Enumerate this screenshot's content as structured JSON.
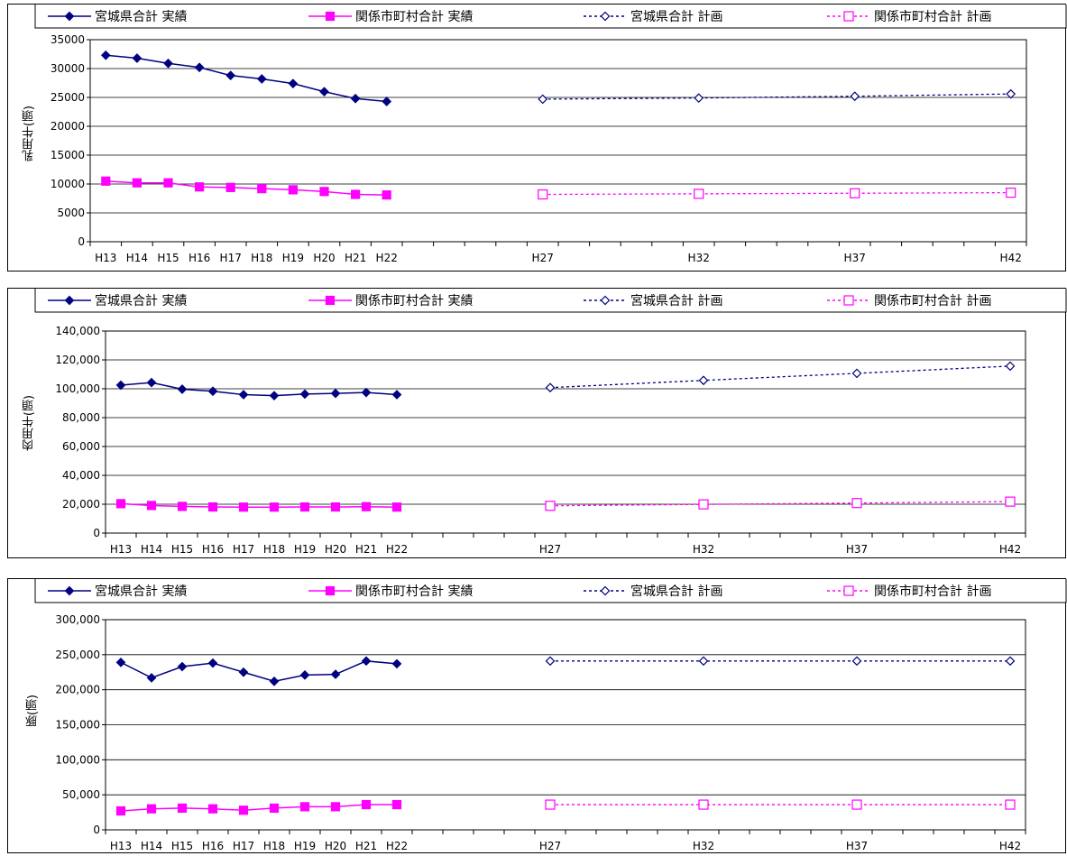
{
  "colors": {
    "actual_pref": "#000080",
    "actual_city": "#ff00ff",
    "plan_pref": "#000080",
    "plan_city": "#ff00ff"
  },
  "legend_labels": [
    "宮城県合計 実績",
    "関係市町村合計 実績",
    "宮城県合計 計画",
    "関係市町村合計 計画"
  ],
  "chart_data": [
    {
      "type": "line",
      "ylabel": "乳用牛(頭)",
      "ylim": [
        0,
        35000
      ],
      "yticks": [
        "0",
        "5000",
        "10000",
        "15000",
        "20000",
        "25000",
        "30000",
        "35000"
      ],
      "categories": [
        "H13",
        "H14",
        "H15",
        "H16",
        "H17",
        "H18",
        "H19",
        "H20",
        "H21",
        "H22",
        "H27",
        "H32",
        "H37",
        "H42"
      ],
      "series": [
        {
          "name": "宮城県合計 実績",
          "x": [
            "H13",
            "H14",
            "H15",
            "H16",
            "H17",
            "H18",
            "H19",
            "H20",
            "H21",
            "H22"
          ],
          "values": [
            32300,
            31800,
            30900,
            30200,
            28800,
            28200,
            27400,
            26000,
            24800,
            24300
          ]
        },
        {
          "name": "関係市町村合計 実績",
          "x": [
            "H13",
            "H14",
            "H15",
            "H16",
            "H17",
            "H18",
            "H19",
            "H20",
            "H21",
            "H22"
          ],
          "values": [
            10500,
            10200,
            10200,
            9500,
            9400,
            9200,
            9000,
            8700,
            8200,
            8100
          ]
        },
        {
          "name": "宮城県合計 計画",
          "x": [
            "H27",
            "H32",
            "H37",
            "H42"
          ],
          "values": [
            24700,
            24900,
            25200,
            25600
          ]
        },
        {
          "name": "関係市町村合計 計画",
          "x": [
            "H27",
            "H32",
            "H37",
            "H42"
          ],
          "values": [
            8200,
            8300,
            8400,
            8500
          ]
        }
      ]
    },
    {
      "type": "line",
      "ylabel": "肉用牛(頭)",
      "ylim": [
        0,
        140000
      ],
      "yticks": [
        "0",
        "20,000",
        "40,000",
        "60,000",
        "80,000",
        "100,000",
        "120,000",
        "140,000"
      ],
      "categories": [
        "H13",
        "H14",
        "H15",
        "H16",
        "H17",
        "H18",
        "H19",
        "H20",
        "H21",
        "H22",
        "H27",
        "H32",
        "H37",
        "H42"
      ],
      "series": [
        {
          "name": "宮城県合計 実績",
          "x": [
            "H13",
            "H14",
            "H15",
            "H16",
            "H17",
            "H18",
            "H19",
            "H20",
            "H21",
            "H22"
          ],
          "values": [
            102500,
            104300,
            99700,
            98300,
            95900,
            95200,
            96300,
            96800,
            97400,
            95900
          ]
        },
        {
          "name": "関係市町村合計 実績",
          "x": [
            "H13",
            "H14",
            "H15",
            "H16",
            "H17",
            "H18",
            "H19",
            "H20",
            "H21",
            "H22"
          ],
          "values": [
            20400,
            19100,
            18500,
            18100,
            18000,
            18000,
            18100,
            18100,
            18300,
            18000
          ]
        },
        {
          "name": "宮城県合計 計画",
          "x": [
            "H27",
            "H32",
            "H37",
            "H42"
          ],
          "values": [
            100800,
            105800,
            110700,
            115700
          ]
        },
        {
          "name": "関係市町村合計 計画",
          "x": [
            "H27",
            "H32",
            "H37",
            "H42"
          ],
          "values": [
            18900,
            19900,
            20800,
            21800
          ]
        }
      ]
    },
    {
      "type": "line",
      "ylabel": "豚(頭)",
      "ylim": [
        0,
        300000
      ],
      "yticks": [
        "0",
        "50,000",
        "100,000",
        "150,000",
        "200,000",
        "250,000",
        "300,000"
      ],
      "categories": [
        "H13",
        "H14",
        "H15",
        "H16",
        "H17",
        "H18",
        "H19",
        "H20",
        "H21",
        "H22",
        "H27",
        "H32",
        "H37",
        "H42"
      ],
      "series": [
        {
          "name": "宮城県合計 実績",
          "x": [
            "H13",
            "H14",
            "H15",
            "H16",
            "H17",
            "H18",
            "H19",
            "H20",
            "H21",
            "H22"
          ],
          "values": [
            239000,
            217000,
            233000,
            238000,
            225000,
            212000,
            221000,
            222000,
            241000,
            237000
          ]
        },
        {
          "name": "関係市町村合計 実績",
          "x": [
            "H13",
            "H14",
            "H15",
            "H16",
            "H17",
            "H18",
            "H19",
            "H20",
            "H21",
            "H22"
          ],
          "values": [
            27000,
            30000,
            31000,
            30000,
            28000,
            31000,
            33000,
            33000,
            36000,
            36000
          ]
        },
        {
          "name": "宮城県合計 計画",
          "x": [
            "H27",
            "H32",
            "H37",
            "H42"
          ],
          "values": [
            241000,
            241000,
            241000,
            241000
          ]
        },
        {
          "name": "関係市町村合計 計画",
          "x": [
            "H27",
            "H32",
            "H37",
            "H42"
          ],
          "values": [
            36000,
            36000,
            36000,
            36000
          ]
        }
      ]
    }
  ]
}
